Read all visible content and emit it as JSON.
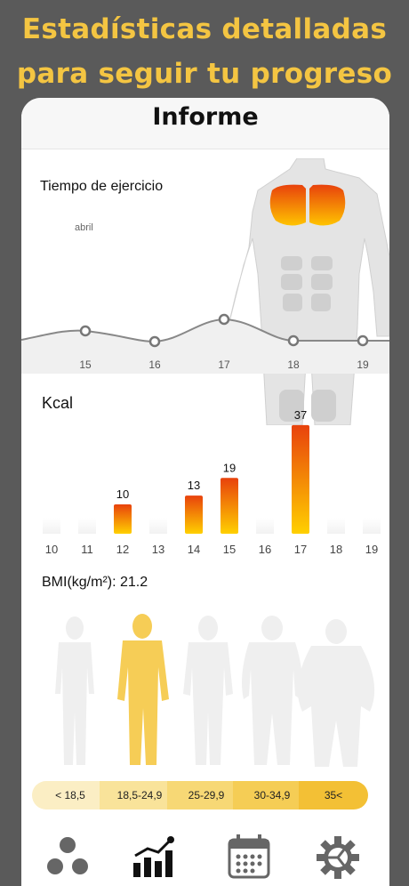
{
  "promo": {
    "line1": "Estadísticas detalladas",
    "line2": "para seguir tu progreso"
  },
  "nav": {
    "title": "Informe"
  },
  "exercise": {
    "label": "Tiempo de ejercicio",
    "month": "abril",
    "days": [
      "15",
      "16",
      "17",
      "18",
      "19"
    ]
  },
  "kcal": {
    "label": "Kcal"
  },
  "bmi": {
    "label": "BMI(kg/m²): 21.2",
    "ranges": [
      "< 18,5",
      "18,5-24,9",
      "25-29,9",
      "30-34,9",
      "35<"
    ]
  },
  "colors": {
    "accent": "#f4c542",
    "bar_top": "#e8420c",
    "bar_bottom": "#ffd000",
    "figure_active": "#f6cd56",
    "figure_inactive": "#efefef"
  },
  "chart_data": [
    {
      "type": "line",
      "title": "",
      "x": [
        "15",
        "16",
        "17",
        "18",
        "19"
      ],
      "series": [
        {
          "values": [
            1,
            0.5,
            1.7,
            0,
            0
          ]
        }
      ]
    },
    {
      "type": "bar",
      "title": "Kcal",
      "categories": [
        "10",
        "11",
        "12",
        "13",
        "14",
        "15",
        "16",
        "17",
        "18",
        "19"
      ],
      "values": [
        0,
        0,
        10,
        0,
        13,
        19,
        0,
        37,
        0,
        0
      ],
      "ylim": [
        0,
        40
      ]
    }
  ]
}
